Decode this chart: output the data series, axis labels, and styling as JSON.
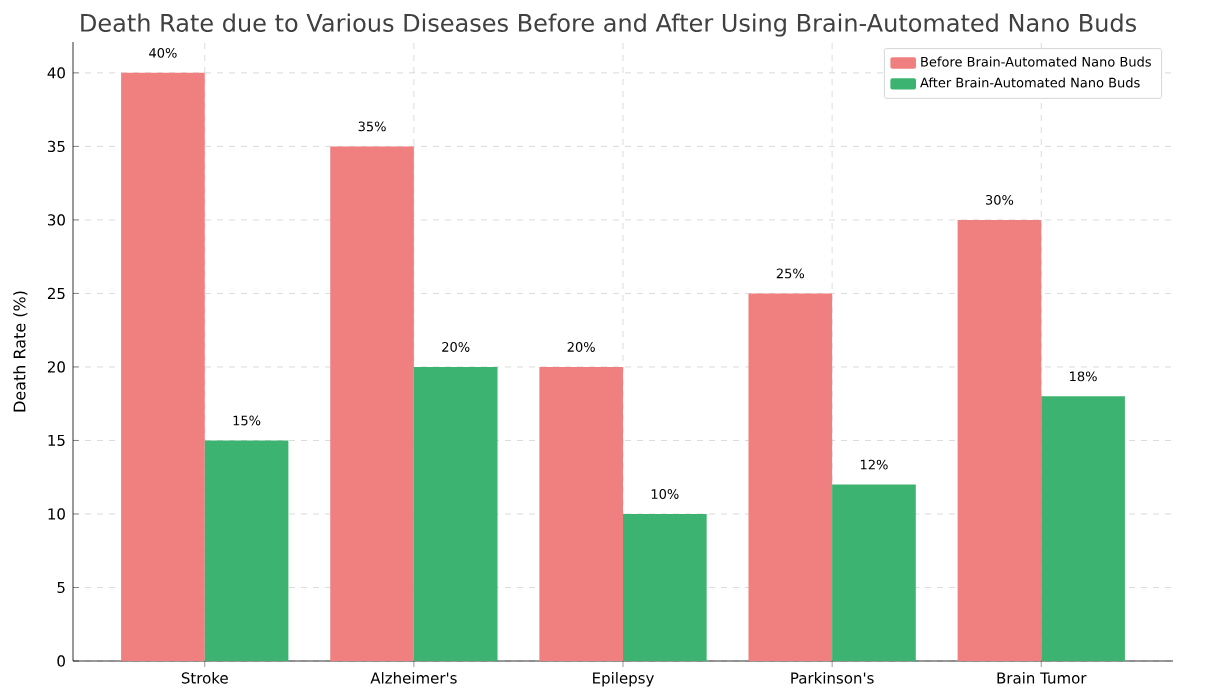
{
  "chart_data": {
    "type": "bar",
    "title": "Death Rate due to Various Diseases Before and After Using Brain-Automated Nano Buds",
    "ylabel": "Death Rate (%)",
    "categories": [
      "Stroke",
      "Alzheimer's",
      "Epilepsy",
      "Parkinson's",
      "Brain Tumor"
    ],
    "series": [
      {
        "name": "Before Brain-Automated Nano Buds",
        "color": "#f08080",
        "values": [
          40,
          35,
          20,
          25,
          30
        ],
        "value_labels": [
          "40%",
          "35%",
          "20%",
          "25%",
          "30%"
        ]
      },
      {
        "name": "After Brain-Automated Nano Buds",
        "color": "#3cb371",
        "values": [
          15,
          20,
          10,
          12,
          18
        ],
        "value_labels": [
          "15%",
          "20%",
          "10%",
          "12%",
          "18%"
        ]
      }
    ],
    "ylim": [
      0,
      42.1
    ],
    "yticks": [
      0,
      5,
      10,
      15,
      20,
      25,
      30,
      35,
      40
    ],
    "grid": true,
    "legend": "top right"
  }
}
